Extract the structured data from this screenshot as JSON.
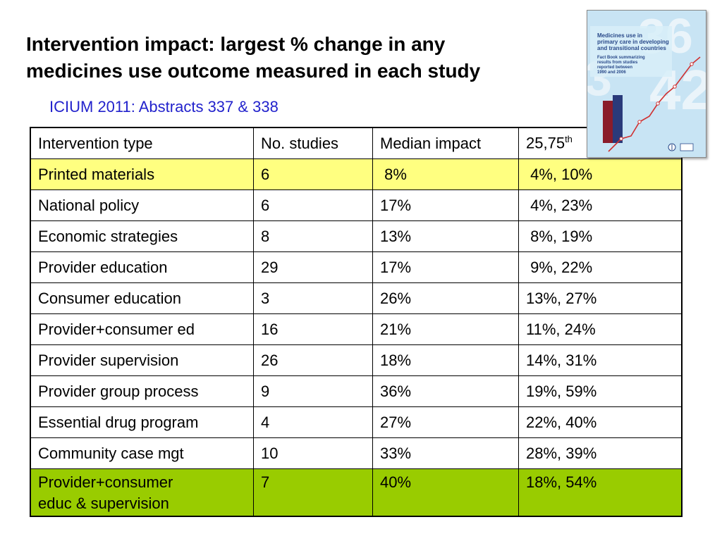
{
  "slide": {
    "title_line1": "Intervention impact: largest % change in any",
    "title_line2": "medicines use outcome measured in each study",
    "subtitle": "ICIUM 2011: Abstracts 337 & 338"
  },
  "table": {
    "headers": [
      "Intervention type",
      "No. studies",
      "Median impact",
      "25,75",
      "th"
    ],
    "rows": [
      {
        "type": "Printed materials",
        "studies": "6",
        "median": " 8%",
        "range": " 4%, 10%",
        "highlight": "yellow"
      },
      {
        "type": "National policy",
        "studies": "6",
        "median": "17%",
        "range": " 4%, 23%",
        "highlight": "none"
      },
      {
        "type": "Economic strategies",
        "studies": "8",
        "median": "13%",
        "range": " 8%, 19%",
        "highlight": "none"
      },
      {
        "type": "Provider education",
        "studies": "29",
        "median": "17%",
        "range": " 9%, 22%",
        "highlight": "none"
      },
      {
        "type": "Consumer education",
        "studies": "3",
        "median": "26%",
        "range": "13%, 27%",
        "highlight": "none"
      },
      {
        "type": "Provider+consumer ed",
        "studies": "16",
        "median": "21%",
        "range": "11%, 24%",
        "highlight": "none"
      },
      {
        "type": "Provider supervision",
        "studies": "26",
        "median": "18%",
        "range": "14%, 31%",
        "highlight": "none"
      },
      {
        "type": "Provider group process",
        "studies": "9",
        "median": "36%",
        "range": "19%, 59%",
        "highlight": "none"
      },
      {
        "type": "Essential drug program",
        "studies": "4",
        "median": "27%",
        "range": "22%, 40%",
        "highlight": "none"
      },
      {
        "type": "Community case mgt",
        "studies": "10",
        "median": "33%",
        "range": "28%, 39%",
        "highlight": "none"
      },
      {
        "type_line1": "Provider+consumer",
        "type_line2": "educ & supervision",
        "studies": "7",
        "median": "40%",
        "range": "18%, 54%",
        "highlight": "green"
      }
    ]
  },
  "cover_image": {
    "title_line1": "Medicines use in",
    "title_line2": "primary care in developing",
    "title_line3": "and transitional countries",
    "desc_line1": "Fact Book summarizing",
    "desc_line2": "results from studies",
    "desc_line3": "reported between",
    "desc_line4": "1990 and 2006",
    "icons": [
      "who-emblem-icon",
      "partner-logo-icon"
    ]
  },
  "colors": {
    "subtitle": "#2222cc",
    "yellow_row": "#ffff80",
    "green_row": "#99cc00",
    "cover_bg": "#c8e4f4",
    "cover_title": "#2a4a8a"
  }
}
